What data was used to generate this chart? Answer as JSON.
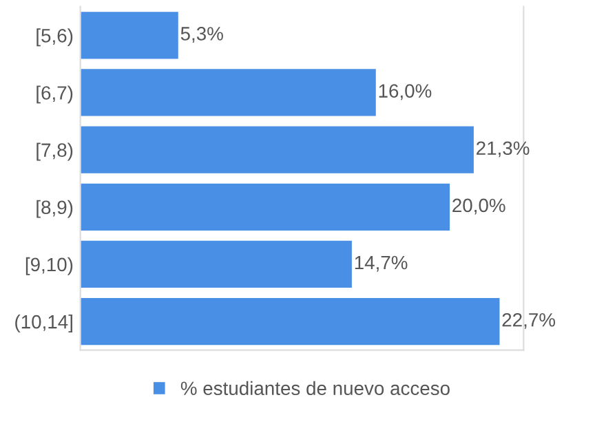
{
  "chart_data": {
    "type": "bar",
    "orientation": "horizontal",
    "categories": [
      "[5,6)",
      "[6,7)",
      "[7,8)",
      "[8,9)",
      "[9,10)",
      "(10,14]"
    ],
    "series": [
      {
        "name": "% estudiantes de nuevo acceso",
        "color": "#4a8fe6",
        "values": [
          5.3,
          16.0,
          21.3,
          20.0,
          14.7,
          22.7
        ],
        "value_labels": [
          "5,3%",
          "16,0%",
          "21,3%",
          "20,0%",
          "14,7%",
          "22,7%"
        ]
      }
    ],
    "xlim": [
      0,
      24
    ],
    "tick_labels": "y",
    "legend": "bottom"
  }
}
